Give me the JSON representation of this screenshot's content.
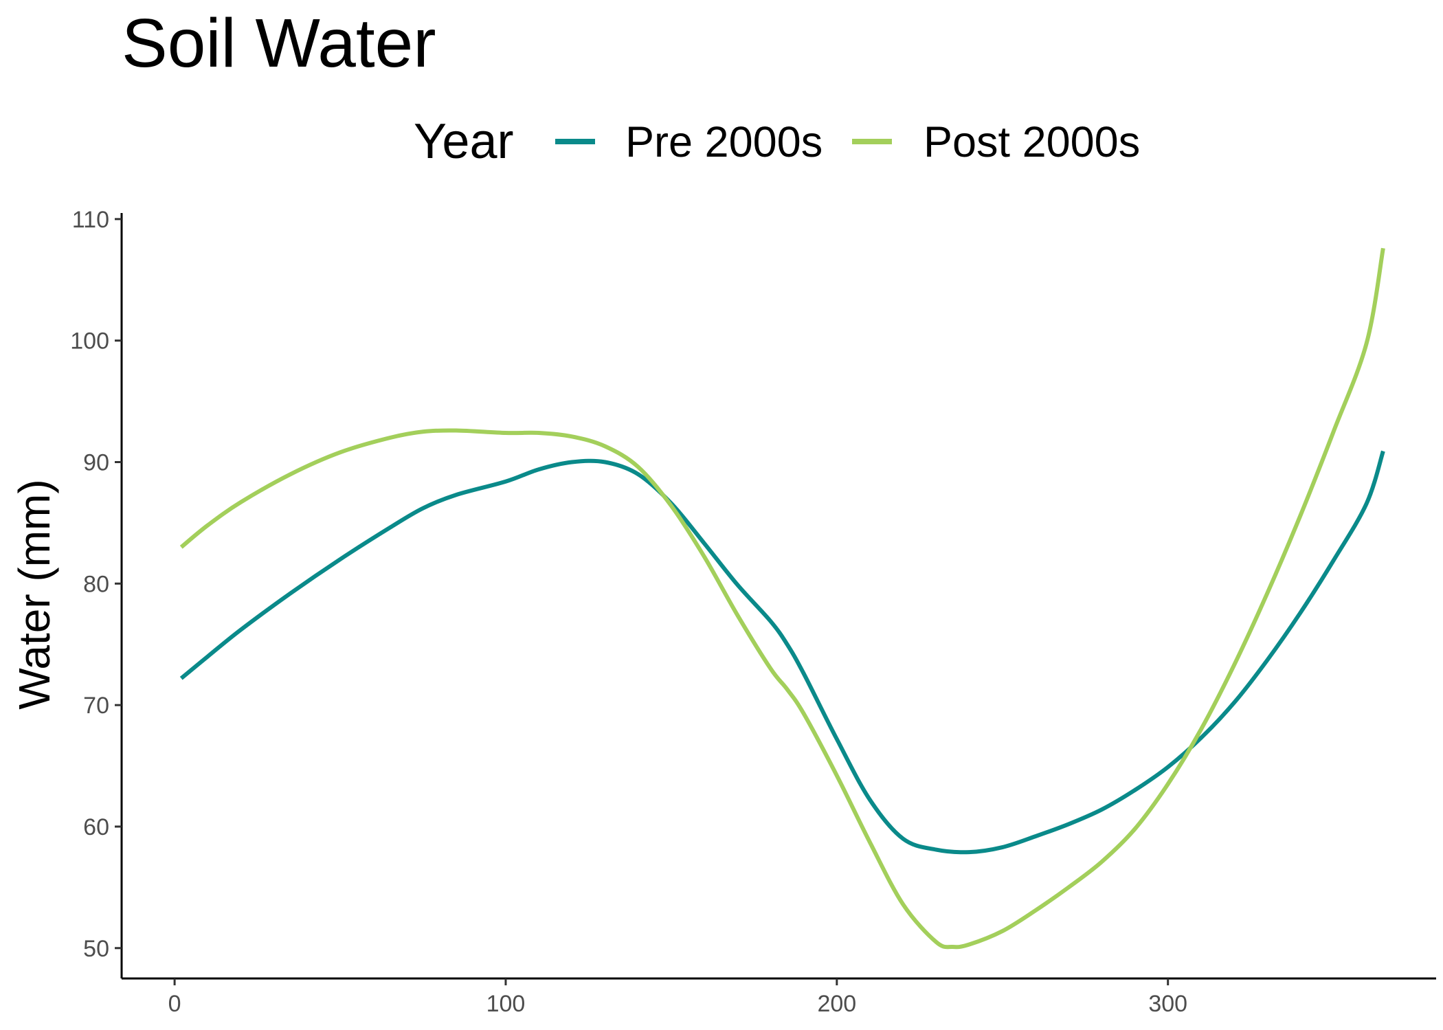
{
  "chart_data": {
    "type": "line",
    "title": "Soil Water",
    "xlabel": "",
    "ylabel": "Water (mm)",
    "xlim": [
      -16,
      381
    ],
    "ylim": [
      47.5,
      110.5
    ],
    "x_ticks": [
      0,
      100,
      200,
      300
    ],
    "y_ticks": [
      50,
      60,
      70,
      80,
      90,
      100,
      110
    ],
    "grid": false,
    "legend": {
      "title": "Year",
      "position": "top"
    },
    "series": [
      {
        "name": "Pre 2000s",
        "color": "#0a8a8a",
        "x": [
          2,
          10,
          20,
          35,
          50,
          65,
          75,
          85,
          100,
          110,
          120,
          130,
          140,
          150,
          160,
          170,
          180,
          185,
          190,
          200,
          210,
          220,
          230,
          240,
          250,
          260,
          270,
          280,
          290,
          300,
          310,
          320,
          330,
          340,
          350,
          360,
          365
        ],
        "y": [
          72.2,
          74.0,
          76.2,
          79.2,
          82.0,
          84.6,
          86.2,
          87.3,
          88.4,
          89.4,
          90.0,
          90.0,
          89.0,
          86.6,
          83.3,
          79.9,
          76.9,
          75.0,
          72.6,
          67.2,
          62.2,
          59.0,
          58.1,
          57.9,
          58.3,
          59.2,
          60.2,
          61.4,
          63.0,
          64.9,
          67.3,
          70.2,
          73.7,
          77.6,
          81.9,
          86.6,
          90.9
        ]
      },
      {
        "name": "Post 2000s",
        "color": "#a3cf5b",
        "x": [
          2,
          10,
          20,
          35,
          50,
          65,
          75,
          85,
          100,
          110,
          120,
          130,
          140,
          150,
          160,
          170,
          180,
          185,
          190,
          200,
          210,
          220,
          230,
          235,
          240,
          250,
          260,
          270,
          280,
          290,
          300,
          310,
          320,
          330,
          340,
          350,
          360,
          365
        ],
        "y": [
          83.0,
          84.8,
          86.7,
          89.0,
          90.8,
          92.0,
          92.5,
          92.6,
          92.4,
          92.4,
          92.1,
          91.3,
          89.6,
          86.4,
          82.2,
          77.4,
          73.0,
          71.3,
          69.3,
          64.2,
          58.7,
          53.6,
          50.5,
          50.1,
          50.3,
          51.4,
          53.1,
          55.0,
          57.1,
          59.8,
          63.5,
          68.0,
          73.3,
          79.2,
          85.6,
          92.5,
          99.8,
          107.6
        ]
      }
    ]
  }
}
